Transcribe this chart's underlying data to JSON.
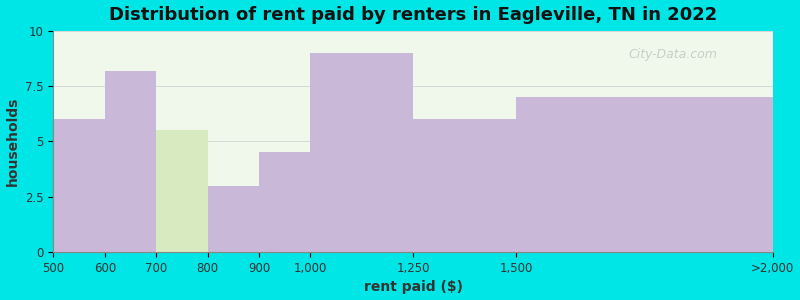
{
  "title": "Distribution of rent paid by renters in Eagleville, TN in 2022",
  "xlabel": "rent paid ($)",
  "ylabel": "households",
  "x_edges": [
    0,
    1,
    2,
    3,
    4,
    5,
    7,
    9,
    14
  ],
  "x_tick_positions": [
    0,
    1,
    2,
    3,
    4,
    5,
    7,
    9,
    14
  ],
  "x_tick_labels": [
    "500",
    "600",
    "700",
    "800",
    "900",
    "1,000",
    "1,250",
    "1,500",
    ">2,000"
  ],
  "values": [
    6.0,
    8.2,
    5.5,
    3.0,
    4.5,
    9.0,
    6.0,
    7.0
  ],
  "bar_colors": [
    "#c9b8d8",
    "#c9b8d8",
    "#d8eac0",
    "#c9b8d8",
    "#c9b8d8",
    "#c9b8d8",
    "#c9b8d8",
    "#c9b8d8"
  ],
  "ylim": [
    0,
    10
  ],
  "yticks": [
    0,
    2.5,
    5,
    7.5,
    10
  ],
  "background_color": "#00e5e5",
  "plot_bg_color": "#f0f8ec",
  "title_fontsize": 13,
  "axis_label_fontsize": 10,
  "tick_fontsize": 8.5,
  "watermark": "City-Data.com"
}
